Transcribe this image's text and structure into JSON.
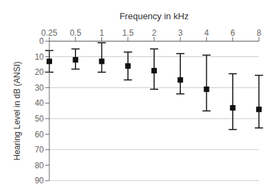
{
  "chart_data": {
    "type": "scatter",
    "xlabel": "Frequency in kHz",
    "ylabel": "Hearing Level in dB (ANSI)",
    "categories": [
      "0.25",
      "0.5",
      "1",
      "1.5",
      "2",
      "3",
      "4",
      "6",
      "8"
    ],
    "values": [
      13,
      12,
      13,
      16,
      19,
      25,
      31,
      43,
      44
    ],
    "error_upper": [
      7,
      6,
      7,
      9,
      12,
      9,
      14,
      14,
      12
    ],
    "error_lower": [
      7,
      7,
      12,
      9,
      14,
      17,
      22,
      22,
      22
    ],
    "ylim": [
      90,
      0
    ],
    "yticks": [
      0,
      10,
      20,
      30,
      40,
      50,
      60,
      70,
      80,
      90
    ],
    "color": "#111111",
    "marker": "square",
    "grid": true
  }
}
